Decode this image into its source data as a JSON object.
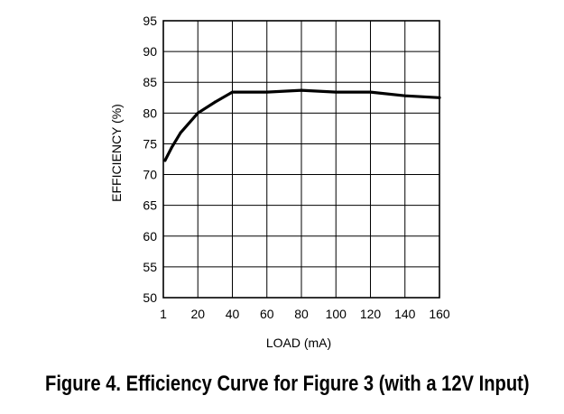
{
  "chart_data": {
    "type": "line",
    "title": "",
    "xlabel": "LOAD (mA)",
    "ylabel": "EFFICIENCY (%)",
    "x_tick_labels": [
      "1",
      "20",
      "40",
      "60",
      "80",
      "100",
      "120",
      "140",
      "160"
    ],
    "y_tick_labels": [
      "50",
      "55",
      "60",
      "65",
      "70",
      "75",
      "80",
      "85",
      "90",
      "95"
    ],
    "xlim": [
      0,
      160
    ],
    "ylim": [
      50,
      95
    ],
    "grid": true,
    "series": [
      {
        "x": [
          1,
          5,
          10,
          20,
          30,
          40,
          60,
          80,
          100,
          120,
          140,
          160
        ],
        "y": [
          72.3,
          74.5,
          76.8,
          80.0,
          81.8,
          83.4,
          83.4,
          83.7,
          83.4,
          83.4,
          82.8,
          82.5
        ],
        "color": "#000000"
      }
    ]
  },
  "caption": "Figure 4. Efficiency Curve for Figure 3 (with a 12V Input)"
}
